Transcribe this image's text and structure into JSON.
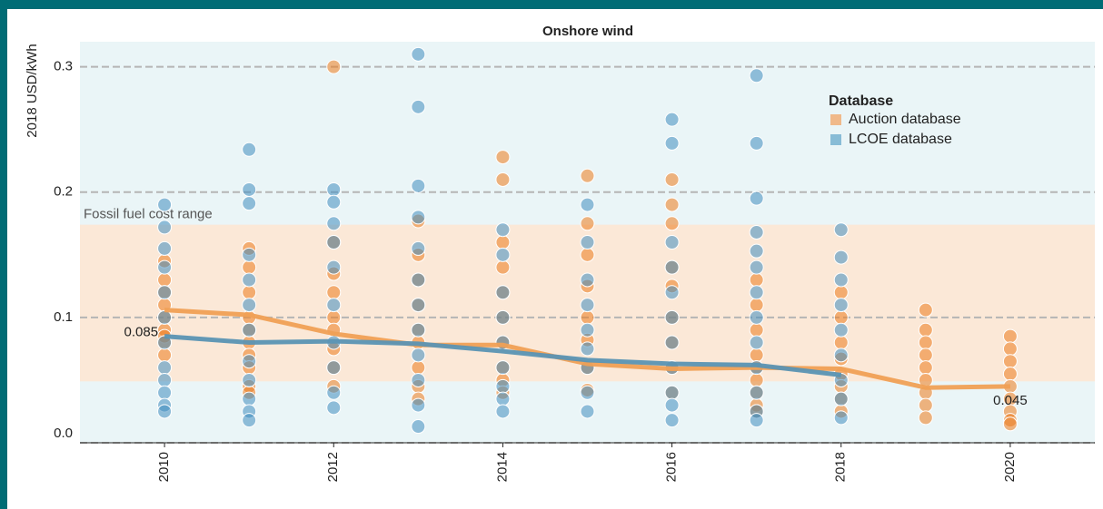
{
  "chart_data": {
    "type": "scatter",
    "title": "Onshore wind",
    "y_label": "2018 USD/kWh",
    "legend_title": "Database",
    "legend": "upper right",
    "xlim": [
      2009,
      2021
    ],
    "xticks": [
      2010,
      2012,
      2014,
      2016,
      2018,
      2020
    ],
    "ylim": [
      0,
      0.32
    ],
    "yticks": [
      {
        "value": 0,
        "label": "0.0"
      },
      0.1,
      0.2,
      0.3
    ],
    "grid": true,
    "band": {
      "label": "Fossil fuel cost range",
      "range": [
        0.049,
        0.174
      ],
      "color": "#fbe8d7"
    },
    "series": [
      {
        "name": "Auction database",
        "color": "#ec7a1c",
        "legend_color": "#f0b98a",
        "x": [
          2010,
          2010,
          2010,
          2010,
          2010,
          2010,
          2010,
          2010,
          2010,
          2011,
          2011,
          2011,
          2011,
          2011,
          2011,
          2011,
          2011,
          2011,
          2011,
          2012,
          2012,
          2012,
          2012,
          2012,
          2012,
          2012,
          2012,
          2012,
          2013,
          2013,
          2013,
          2013,
          2013,
          2013,
          2013,
          2013,
          2013,
          2014,
          2014,
          2014,
          2014,
          2014,
          2014,
          2014,
          2014,
          2014,
          2014,
          2015,
          2015,
          2015,
          2015,
          2015,
          2015,
          2015,
          2015,
          2016,
          2016,
          2016,
          2016,
          2016,
          2016,
          2016,
          2016,
          2016,
          2017,
          2017,
          2017,
          2017,
          2017,
          2017,
          2017,
          2017,
          2017,
          2018,
          2018,
          2018,
          2018,
          2018,
          2018,
          2018,
          2018,
          2019,
          2019,
          2019,
          2019,
          2019,
          2019,
          2019,
          2019,
          2019,
          2020,
          2020,
          2020,
          2020,
          2020,
          2020,
          2020,
          2020,
          2020
        ],
        "values": [
          0.145,
          0.13,
          0.12,
          0.11,
          0.1,
          0.09,
          0.085,
          0.08,
          0.07,
          0.155,
          0.14,
          0.12,
          0.1,
          0.09,
          0.08,
          0.07,
          0.06,
          0.045,
          0.04,
          0.3,
          0.16,
          0.135,
          0.12,
          0.1,
          0.09,
          0.075,
          0.06,
          0.045,
          0.177,
          0.15,
          0.13,
          0.11,
          0.09,
          0.08,
          0.06,
          0.045,
          0.035,
          0.228,
          0.21,
          0.16,
          0.14,
          0.12,
          0.1,
          0.08,
          0.06,
          0.05,
          0.04,
          0.213,
          0.175,
          0.15,
          0.125,
          0.1,
          0.082,
          0.06,
          0.042,
          0.21,
          0.19,
          0.175,
          0.14,
          0.125,
          0.1,
          0.08,
          0.06,
          0.04,
          0.13,
          0.11,
          0.09,
          0.07,
          0.06,
          0.05,
          0.04,
          0.03,
          0.025,
          0.12,
          0.1,
          0.08,
          0.067,
          0.055,
          0.045,
          0.035,
          0.025,
          0.106,
          0.09,
          0.08,
          0.07,
          0.06,
          0.05,
          0.04,
          0.03,
          0.02,
          0.085,
          0.075,
          0.065,
          0.055,
          0.045,
          0.035,
          0.025,
          0.018,
          0.015
        ]
      },
      {
        "name": "LCOE database",
        "color": "#3f8cc0",
        "legend_color": "#88bcd6",
        "x": [
          2010,
          2010,
          2010,
          2010,
          2010,
          2010,
          2010,
          2010,
          2010,
          2010,
          2010,
          2010,
          2011,
          2011,
          2011,
          2011,
          2011,
          2011,
          2011,
          2011,
          2011,
          2011,
          2011,
          2011,
          2012,
          2012,
          2012,
          2012,
          2012,
          2012,
          2012,
          2012,
          2012,
          2012,
          2013,
          2013,
          2013,
          2013,
          2013,
          2013,
          2013,
          2013,
          2013,
          2013,
          2013,
          2013,
          2014,
          2014,
          2014,
          2014,
          2014,
          2014,
          2014,
          2014,
          2014,
          2015,
          2015,
          2015,
          2015,
          2015,
          2015,
          2015,
          2015,
          2015,
          2016,
          2016,
          2016,
          2016,
          2016,
          2016,
          2016,
          2016,
          2016,
          2016,
          2016,
          2017,
          2017,
          2017,
          2017,
          2017,
          2017,
          2017,
          2017,
          2017,
          2017,
          2017,
          2017,
          2017,
          2018,
          2018,
          2018,
          2018,
          2018,
          2018,
          2018,
          2018,
          2018
        ],
        "values": [
          0.19,
          0.172,
          0.155,
          0.14,
          0.12,
          0.1,
          0.08,
          0.06,
          0.05,
          0.04,
          0.03,
          0.025,
          0.234,
          0.202,
          0.191,
          0.15,
          0.13,
          0.11,
          0.09,
          0.065,
          0.05,
          0.035,
          0.025,
          0.018,
          0.202,
          0.192,
          0.175,
          0.16,
          0.14,
          0.11,
          0.08,
          0.06,
          0.04,
          0.028,
          0.31,
          0.268,
          0.205,
          0.18,
          0.155,
          0.13,
          0.11,
          0.09,
          0.07,
          0.05,
          0.03,
          0.013,
          0.17,
          0.15,
          0.12,
          0.1,
          0.08,
          0.06,
          0.045,
          0.035,
          0.025,
          0.19,
          0.16,
          0.13,
          0.11,
          0.09,
          0.075,
          0.06,
          0.04,
          0.025,
          0.258,
          0.239,
          0.16,
          0.14,
          0.12,
          0.1,
          0.08,
          0.06,
          0.04,
          0.03,
          0.018,
          0.293,
          0.239,
          0.195,
          0.168,
          0.153,
          0.14,
          0.12,
          0.1,
          0.08,
          0.06,
          0.04,
          0.025,
          0.018,
          0.17,
          0.148,
          0.13,
          0.11,
          0.09,
          0.07,
          0.05,
          0.035,
          0.02
        ]
      }
    ],
    "lines": [
      {
        "color": "#f0a055",
        "x": [
          2010,
          2011,
          2012,
          2013,
          2014,
          2015,
          2016,
          2017,
          2018,
          2019,
          2020
        ],
        "values": [
          0.106,
          0.102,
          0.087,
          0.078,
          0.078,
          0.063,
          0.059,
          0.06,
          0.059,
          0.044,
          0.045
        ],
        "value_labels": [
          null,
          null,
          null,
          null,
          null,
          null,
          null,
          null,
          null,
          null,
          "0.045"
        ]
      },
      {
        "color": "#5a93b3",
        "x": [
          2010,
          2011,
          2012,
          2013,
          2014,
          2015,
          2016,
          2017,
          2018
        ],
        "values": [
          0.085,
          0.08,
          0.081,
          0.079,
          0.073,
          0.066,
          0.063,
          0.062,
          0.054
        ],
        "value_labels": [
          "0.085",
          null,
          null,
          null,
          null,
          null,
          null,
          null,
          null
        ]
      }
    ]
  }
}
